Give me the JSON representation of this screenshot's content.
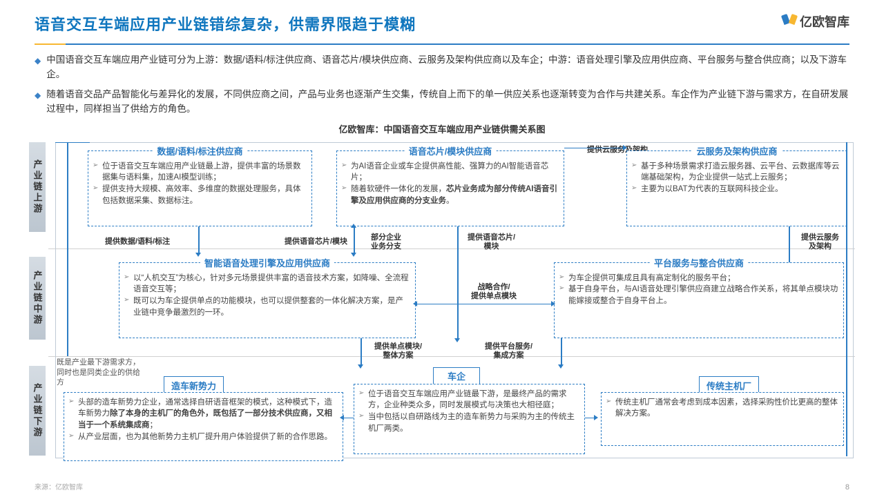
{
  "colors": {
    "primary": "#2b7cc4",
    "accent": "#0f76be",
    "orange": "#f7b731",
    "band": "#d5dce3",
    "text": "#333"
  },
  "title": "语音交互车端应用产业链错综复杂，供需界限趋于模糊",
  "logo": "亿欧智库",
  "bullets": [
    "中国语音交互车端应用产业链可分为上游：数据/语料/标注供应商、语音芯片/模块供应商、云服务及架构供应商以及车企；中游：语音处理引擎及应用供应商、平台服务与整合供应商；以及下游车企。",
    "随着语音交品产品智能化与差异化的发展，不同供应商之间，产品与业务也逐渐产生交集，传统自上而下的单一供应关系也逐渐转变为合作与共建关系。车企作为产业链下游与需求方，在自研发展过程中，同样担当了供给方的角色。"
  ],
  "diagram_title": "亿欧智库：中国语音交互车端应用产业链供需关系图",
  "rows": {
    "up": "产业链上游",
    "mid": "产业链中游",
    "down": "产业链下游"
  },
  "up": {
    "data": {
      "title": "数据/语料/标注供应商",
      "items": [
        "位于语音交互车端应用产业链最上游，提供丰富的场景数据集与语料集，加速AI模型训练；",
        "提供支持大规模、高效率、多维度的数据处理服务，具体包括数据采集、数据标注。"
      ]
    },
    "chip": {
      "title": "语音芯片/模块供应商",
      "items": [
        "为AI语音企业或车企提供高性能、强算力的AI智能语音芯片；",
        "随着软硬件一体化的发展，<b>芯片业务成为部分传统AI语音引擎及应用供应商的分支业务</b>。"
      ]
    },
    "cloud": {
      "title": "云服务及架构供应商",
      "items": [
        "基于多种场景需求打造云服务器、云平台、云数据库等云端基础架构，为企业提供一站式上云服务；",
        "主要为以BAT为代表的互联网科技企业。"
      ]
    }
  },
  "mid": {
    "engine": {
      "title": "智能语音处理引擎及应用供应商",
      "items": [
        "以“人机交互”为核心，针对多元场景提供丰富的语音技术方案，如降噪、全流程语音交互等；",
        "既可以为车企提供单点的功能模块，也可以提供整套的一体化解决方案，是产业链中竞争最激烈的一环。"
      ]
    },
    "platform": {
      "title": "平台服务与整合供应商",
      "items": [
        "为车企提供可集成且具有高定制化的服务平台；",
        "基于自身平台，与AI语音处理引擎供应商建立战略合作关系，将其单点模块功能嫁接或整合于自身平台上。"
      ]
    }
  },
  "down": {
    "newforce": {
      "title": "造车新势力",
      "items": [
        "头部的造车新势力企业，通常选择自研语音框架的模式，这种模式下，造车新势力<b>除了本身的主机厂的角色外，既包括了一部分技术供应商，又相当于一个系统集成商</b>；",
        "从产业层面，也为其他新势力主机厂提升用户体验提供了新的合作思路。"
      ]
    },
    "auto": {
      "title": "车企",
      "items": [
        "位于语音交互车端应用产业链最下游，是最终产品的需求方，企业种类众多，同时发展模式与决策也大相径庭；",
        "当中包括以自研路线为主的造车新势力与采购为主的传统主机厂两类。"
      ]
    },
    "oem": {
      "title": "传统主机厂",
      "items": [
        "传统主机厂通常会考虑到成本因素，选择采购性价比更高的整体解决方案。"
      ]
    }
  },
  "flows": {
    "f1": "提供数据/语料/标注",
    "f2": "提供语音芯片/模块",
    "f3": "部分企业业务分支",
    "f4": "提供语音芯片/模块",
    "f5": "提供云服务及架构",
    "f6": "提供云服务及架构",
    "f7": "战略合作/提供单点模块",
    "f8": "提供单点模块/整体方案",
    "f9": "提供平台服务/集成方案"
  },
  "note": "既是产业最下游需求方，同时也是同类企业的供给方",
  "footer": "来源：亿欧智库",
  "page": "8"
}
